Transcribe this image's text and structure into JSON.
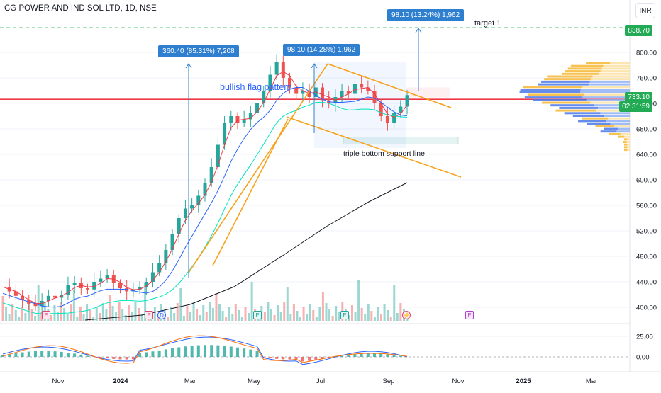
{
  "header": {
    "title": "CG POWER AND IND SOL LTD, 1D, NSE",
    "currency": "INR"
  },
  "annotations": {
    "callout_left": "360.40 (85.31%) 7,208",
    "callout_mid": "98.10 (14.28%) 1,962",
    "callout_top": "98.10 (13.24%) 1,962",
    "target_label": "target 1",
    "pattern_label": "bullish flag pattern",
    "support_label": "triple bottom support line"
  },
  "price_tags": {
    "target": "838.70",
    "last": "733.10",
    "countdown": "02:31:59"
  },
  "events": {
    "earnings": "E",
    "dividend": "D",
    "split": "⚡"
  },
  "colors": {
    "up": "#26a69a",
    "down": "#ef5350",
    "ema_red": "#f23645",
    "ema_blue": "#2962ff",
    "ema_cyan": "#00e5c0",
    "ema_black": "#131722",
    "flag": "#f7a21b",
    "measure": "#2f7fd1",
    "target_line": "#22ab54"
  },
  "chart_data": {
    "type": "line",
    "title": "CG POWER AND IND SOL LTD, 1D, NSE",
    "xlabel": "",
    "ylabel": "",
    "x_ticks": [
      "Nov",
      "2024",
      "Mar",
      "May",
      "Jul",
      "Sep",
      "Nov",
      "2025",
      "Mar"
    ],
    "y_ticks": [
      "400.00",
      "440.00",
      "480.00",
      "520.00",
      "560.00",
      "600.00",
      "640.00",
      "680.00",
      "720.00",
      "760.00",
      "800.00"
    ],
    "ylim": [
      385,
      845
    ],
    "indicator_ticks": [
      "25.00",
      "0.00"
    ],
    "series": [
      {
        "name": "",
        "values": [
          432,
          425,
          418,
          412,
          405,
          402,
          410,
          418,
          415,
          420,
          435,
          438,
          430,
          428,
          440,
          445,
          450,
          438,
          430,
          425,
          428,
          432,
          440,
          455,
          470,
          490,
          515,
          540,
          555,
          560,
          575,
          595,
          620,
          655,
          690,
          700,
          690,
          695,
          705,
          720,
          740,
          765,
          785,
          760,
          745,
          735,
          740,
          730,
          745,
          725,
          720,
          730,
          740,
          735,
          750,
          745,
          740,
          720,
          700,
          690,
          705,
          715,
          733
        ]
      }
    ],
    "reference_levels": {
      "target_1": 838.7,
      "horizontal_red": 733.1
    }
  }
}
